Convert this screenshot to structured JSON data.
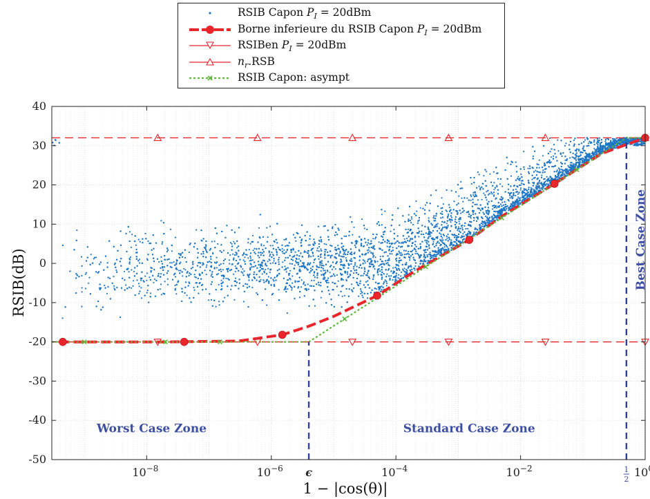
{
  "chart_data": {
    "type": "scatter",
    "x_scale": "log",
    "xlim": [
      3e-10,
      1
    ],
    "ylim": [
      -50,
      40
    ],
    "grid": true,
    "legend_placement": "top-center (outside)",
    "xlabel": "1 − |cos(θ)|",
    "ylabel": "RSIB(dB)",
    "x_ticks": [
      {
        "value": 1e-08,
        "base": "10",
        "exp": "−8"
      },
      {
        "value": 1e-06,
        "base": "10",
        "exp": "−6"
      },
      {
        "value": 0.0001,
        "base": "10",
        "exp": "−4"
      },
      {
        "value": 0.01,
        "base": "10",
        "exp": "−2"
      },
      {
        "value": 1,
        "base": "10",
        "exp": "0"
      }
    ],
    "y_ticks": [
      -50,
      -40,
      -30,
      -20,
      -10,
      0,
      10,
      20,
      30,
      40
    ],
    "special_x_ticks": [
      {
        "value": 4e-06,
        "label": "ϵ"
      },
      {
        "value": 0.5,
        "label_num": "1",
        "label_den": "2"
      }
    ],
    "series": [
      {
        "name": "RSIB Capon P_I = 20dBm",
        "kind": "scatter-cloud",
        "color": "#1f77c4",
        "description_points": "dense random cloud between lower bound and 32 dB"
      },
      {
        "name": "Borne inferieure du RSIB Capon P_I = 20dBm",
        "color": "#e8262b",
        "points": [
          {
            "x": 4e-10,
            "y": -20
          },
          {
            "x": 2e-08,
            "y": -20
          },
          {
            "x": 3e-07,
            "y": -19.8
          },
          {
            "x": 1.5e-06,
            "y": -18.2
          },
          {
            "x": 4e-06,
            "y": -16
          },
          {
            "x": 1e-05,
            "y": -13.5
          },
          {
            "x": 5e-05,
            "y": -8.2
          },
          {
            "x": 0.0002,
            "y": -2
          },
          {
            "x": 0.0015,
            "y": 6
          },
          {
            "x": 0.005,
            "y": 12
          },
          {
            "x": 0.035,
            "y": 20.3
          },
          {
            "x": 0.2,
            "y": 28
          },
          {
            "x": 1,
            "y": 32
          }
        ],
        "markers": [
          {
            "x": 4.5e-10,
            "y": -20
          },
          {
            "x": 4e-08,
            "y": -20
          },
          {
            "x": 1.5e-06,
            "y": -18.2
          },
          {
            "x": 5e-05,
            "y": -8.2
          },
          {
            "x": 0.0015,
            "y": 6
          },
          {
            "x": 0.035,
            "y": 20.3
          },
          {
            "x": 1,
            "y": 32
          }
        ]
      },
      {
        "name": "RSIBen P_I = 20dBm",
        "color": "#e8262b",
        "value": -20,
        "marker_x": [
          1.5e-08,
          6e-07,
          2e-05,
          0.0007,
          0.025,
          1
        ]
      },
      {
        "name": "n_r.RSB",
        "color": "#e8262b",
        "value": 32,
        "marker_x": [
          1.5e-08,
          6e-07,
          2e-05,
          0.0007,
          0.025,
          1
        ]
      },
      {
        "name": "RSIB Capon: asympt",
        "color": "#5fb53a",
        "points": [
          {
            "x": 3e-10,
            "y": -20
          },
          {
            "x": 4e-06,
            "y": -20
          },
          {
            "x": 0.5,
            "y": 32
          },
          {
            "x": 1,
            "y": 32
          }
        ],
        "marker_x": [
          1e-09,
          2e-08,
          1.5e-07,
          1.5e-05,
          0.0003,
          0.005,
          0.08
        ]
      }
    ],
    "vlines": [
      {
        "x": 4e-06,
        "y_from": -50,
        "y_to": -20,
        "color": "#2f3f9a"
      },
      {
        "x": 0.5,
        "y_from": -50,
        "y_to": 32,
        "color": "#2f3f9a"
      }
    ],
    "annotations": [
      {
        "text": "Worst Case Zone",
        "x": 1.2e-08,
        "y": -42
      },
      {
        "text": "Standard Case Zone",
        "x": 0.0015,
        "y": -42
      },
      {
        "text": "Best Case Zone",
        "x": 0.72,
        "y": 6,
        "rotation": -90
      }
    ]
  },
  "legend": [
    {
      "pre": "RSIB Capon ",
      "var": "P",
      "sub": "I",
      "post": " = 20dBm"
    },
    {
      "pre": "Borne inferieure du RSIB Capon ",
      "var": "P",
      "sub": "I",
      "post": " = 20dBm"
    },
    {
      "pre": "RSIBen ",
      "var": "P",
      "sub": "I",
      "post": " = 20dBm"
    },
    {
      "pre": "",
      "var": "n",
      "sub": "r",
      "post": ".RSB"
    },
    {
      "pre": "RSIB Capon: asympt",
      "var": "",
      "sub": "",
      "post": ""
    }
  ]
}
